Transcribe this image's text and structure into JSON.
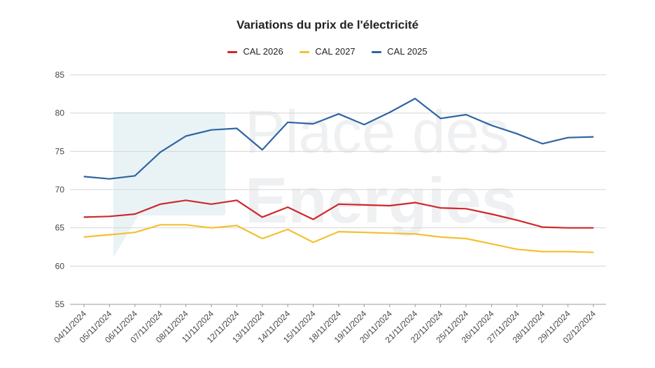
{
  "chart_data": {
    "type": "line",
    "title": "Variations du prix de l'électricité",
    "xlabel": "",
    "ylabel": "",
    "ylim": [
      55,
      85
    ],
    "yticks": [
      55,
      60,
      65,
      70,
      75,
      80,
      85
    ],
    "grid": true,
    "legend_position": "top",
    "categories": [
      "04/11/2024",
      "05/11/2024",
      "06/11/2024",
      "07/11/2024",
      "08/11/2024",
      "11/11/2024",
      "12/11/2024",
      "13/11/2024",
      "14/11/2024",
      "15/11/2024",
      "18/11/2024",
      "19/11/2024",
      "20/11/2024",
      "21/11/2024",
      "22/11/2024",
      "25/11/2024",
      "26/11/2024",
      "27/11/2024",
      "28/11/2024",
      "29/11/2024",
      "02/12/2024"
    ],
    "series": [
      {
        "name": "CAL 2026",
        "color": "#d0272b",
        "values": [
          66.4,
          66.5,
          66.8,
          68.1,
          68.6,
          68.1,
          68.6,
          66.4,
          67.7,
          66.1,
          68.1,
          68.0,
          67.9,
          68.3,
          67.6,
          67.5,
          66.8,
          66.0,
          65.1,
          65.0,
          65.0
        ]
      },
      {
        "name": "CAL 2027",
        "color": "#f4c030",
        "values": [
          63.8,
          64.1,
          64.4,
          65.4,
          65.4,
          65.0,
          65.3,
          63.6,
          64.8,
          63.1,
          64.5,
          64.4,
          64.3,
          64.2,
          63.8,
          63.6,
          62.9,
          62.2,
          61.9,
          61.9,
          61.8
        ]
      },
      {
        "name": "CAL 2025",
        "color": "#2f65a3",
        "values": [
          71.7,
          71.4,
          71.8,
          74.9,
          77.0,
          77.8,
          78.0,
          75.2,
          78.8,
          78.6,
          79.9,
          78.5,
          80.1,
          81.9,
          79.3,
          79.8,
          78.4,
          77.3,
          76.0,
          76.8,
          76.9
        ]
      }
    ]
  },
  "watermark": {
    "line1": "Place des",
    "line2": "Energies",
    "color": "#eef0f2"
  }
}
